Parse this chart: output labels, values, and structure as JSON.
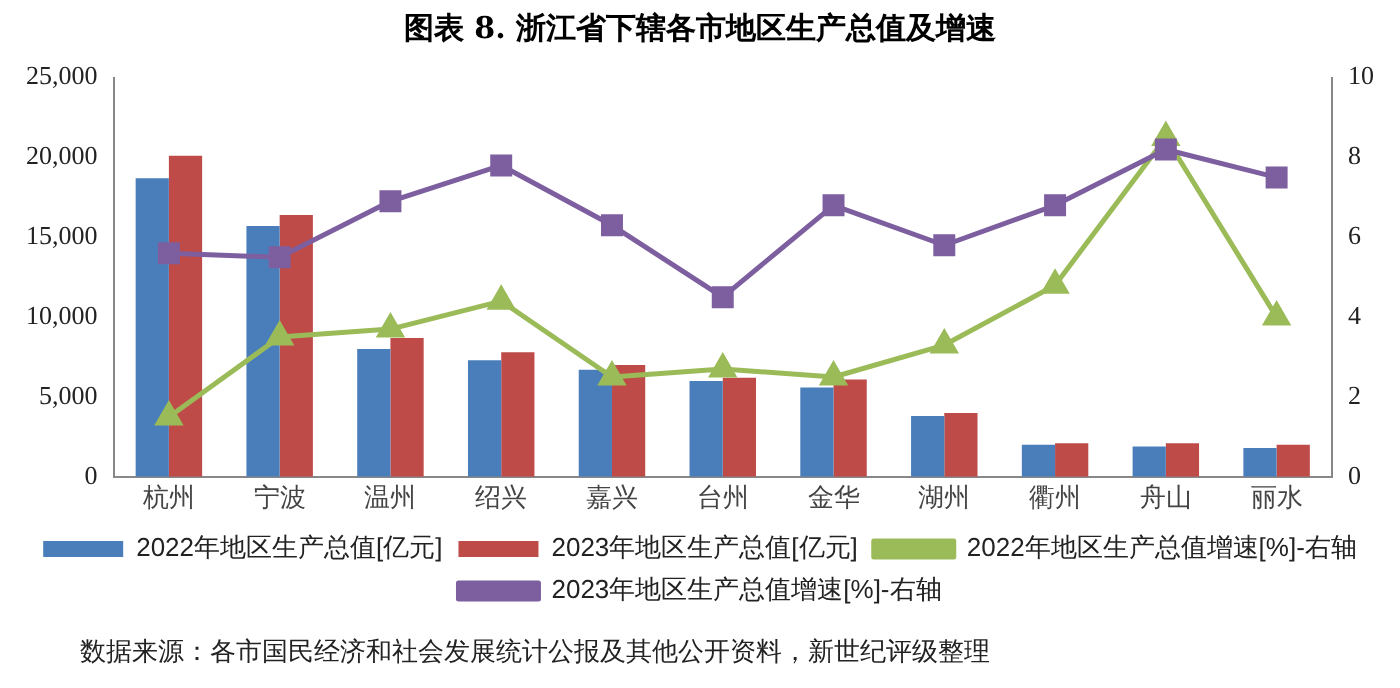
{
  "chart_data": {
    "type": "bar",
    "title": "图表 8. 浙江省下辖各市地区生产总值及增速",
    "categories": [
      "杭州",
      "宁波",
      "温州",
      "绍兴",
      "嘉兴",
      "台州",
      "金华",
      "湖州",
      "衢州",
      "舟山",
      "丽水"
    ],
    "series": [
      {
        "name": "2022年地区生产总值[亿元]",
        "color": "#4a7ebb",
        "values": [
          18700,
          15700,
          8000,
          7300,
          6700,
          6000,
          5600,
          3800,
          2000,
          1900,
          1800
        ]
      },
      {
        "name": "2023年地区生产总值[亿元]",
        "color": "#be4b48",
        "values": [
          20100,
          16400,
          8700,
          7800,
          7000,
          6200,
          6100,
          4000,
          2100,
          2100,
          2000
        ]
      },
      {
        "name": "2022年地区生产总值增速[%]-右轴",
        "type": "line",
        "axis": "y2",
        "marker": "triangle",
        "color": "#9bbb59",
        "values": [
          1.5,
          3.5,
          3.7,
          4.4,
          2.5,
          2.7,
          2.5,
          3.3,
          4.8,
          8.5,
          4.0
        ]
      },
      {
        "name": "2023年地区生产总值增速[%]-右轴",
        "type": "line",
        "axis": "y2",
        "marker": "square",
        "color": "#7d5fa0",
        "values": [
          5.6,
          5.5,
          6.9,
          7.8,
          6.3,
          4.5,
          6.8,
          5.8,
          6.8,
          8.2,
          7.5
        ]
      }
    ],
    "ylim": [
      0,
      25000
    ],
    "yticks": [
      {
        "value": 0,
        "label": "0"
      },
      {
        "value": 5000,
        "label": "5,000"
      },
      {
        "value": 10000,
        "label": "10,000"
      },
      {
        "value": 15000,
        "label": "15,000"
      },
      {
        "value": 20000,
        "label": "20,000"
      },
      {
        "value": 25000,
        "label": "25,000"
      }
    ],
    "y2lim": [
      0,
      10
    ],
    "y2ticks": [
      0,
      2,
      4,
      6,
      8,
      10
    ],
    "grid": false,
    "legend": "bottom",
    "annotations": [
      "数据来源：各市国民经济和社会发展统计公报及其他公开资料，新世纪评级整理"
    ]
  }
}
